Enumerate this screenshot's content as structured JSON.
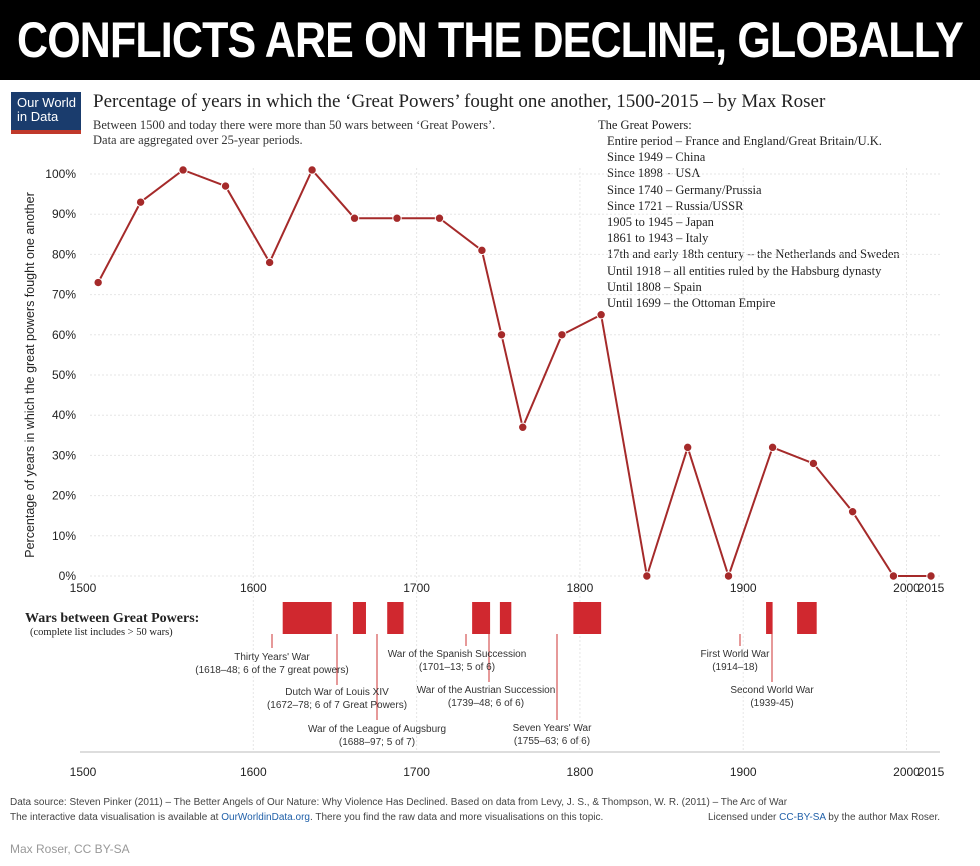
{
  "banner": "CONFLICTS ARE ON THE DECLINE, GLOBALLY",
  "logo": {
    "line1": "Our World",
    "line2": "in Data",
    "color": "#1a3c6d",
    "accent": "#c0392b"
  },
  "title": "Percentage of years in which the ‘Great Powers’ fought one another, 1500-2015 – by Max Roser",
  "subtitle_lines": [
    "Between 1500 and today there were more than 50 wars between ‘Great Powers’.",
    "Data are aggregated over 25-year periods."
  ],
  "great_powers": {
    "heading": "The Great Powers:",
    "items": [
      "Entire period – France and England/Great Britain/U.K.",
      "Since 1949 – China",
      "Since 1898 – USA",
      "Since 1740 – Germany/Prussia",
      "Since 1721 – Russia/USSR",
      "1905 to 1945 – Japan",
      "1861 to 1943 – Italy",
      "17th and early 18th century – the Netherlands and Sweden",
      "Until 1918 – all entities ruled by the Habsburg dynasty",
      "Until 1808 – Spain",
      "Until 1699 – the Ottoman Empire"
    ]
  },
  "chart_data": {
    "type": "line",
    "ylabel": "Percentage of years in which the great powers fought one another",
    "xlim": [
      1500,
      2015
    ],
    "ylim": [
      0,
      100
    ],
    "x_ticks": [
      "1500",
      "1600",
      "1700",
      "1800",
      "1900",
      "2000",
      "2015"
    ],
    "x_tick_values": [
      1500,
      1600,
      1700,
      1800,
      1900,
      2000,
      2015
    ],
    "y_ticks": [
      "0%",
      "10%",
      "20%",
      "30%",
      "40%",
      "50%",
      "60%",
      "70%",
      "80%",
      "90%",
      "100%"
    ],
    "y_tick_values": [
      0,
      10,
      20,
      30,
      40,
      50,
      60,
      70,
      80,
      90,
      100
    ],
    "grid": true,
    "series": [
      {
        "color": "#a52a2a",
        "points": [
          [
            1505,
            73
          ],
          [
            1531,
            93
          ],
          [
            1557,
            101
          ],
          [
            1583,
            97
          ],
          [
            1610,
            78
          ],
          [
            1636,
            101
          ],
          [
            1662,
            89
          ],
          [
            1688,
            89
          ],
          [
            1714,
            89
          ],
          [
            1740,
            81
          ],
          [
            1752,
            60
          ],
          [
            1765,
            37
          ],
          [
            1789,
            60
          ],
          [
            1813,
            65
          ],
          [
            1841,
            0
          ],
          [
            1866,
            32
          ],
          [
            1891,
            0
          ],
          [
            1918,
            32
          ],
          [
            1943,
            28
          ],
          [
            1967,
            16
          ],
          [
            1992,
            0
          ],
          [
            2015,
            0
          ]
        ]
      }
    ],
    "wars": {
      "title": "Wars between Great Powers:",
      "subtitle": "(complete list includes > 50 wars)",
      "color": "#d0282f",
      "bars": [
        {
          "start": 1618,
          "end": 1648
        },
        {
          "start": 1661,
          "end": 1669
        },
        {
          "start": 1682,
          "end": 1692
        },
        {
          "start": 1734,
          "end": 1745
        },
        {
          "start": 1751,
          "end": 1758
        },
        {
          "start": 1796,
          "end": 1813
        },
        {
          "start": 1914,
          "end": 1918
        },
        {
          "start": 1933,
          "end": 1945
        }
      ],
      "labels": [
        {
          "lines": [
            "Thirty Years' War",
            "(1618–48; 6 of the 7 great powers)"
          ]
        },
        {
          "lines": [
            "Dutch War of Louis XIV",
            "(1672–78; 6 of 7 Great Powers)"
          ]
        },
        {
          "lines": [
            "War of the League of Augsburg",
            "(1688–97; 5 of 7)"
          ]
        },
        {
          "lines": [
            "War of the Spanish Succession",
            "(1701–13; 5 of 6)"
          ]
        },
        {
          "lines": [
            "War of the Austrian Succession",
            "(1739–48; 6 of 6)"
          ]
        },
        {
          "lines": [
            "Seven Years' War",
            "(1755–63; 6 of 6)"
          ]
        },
        {
          "lines": [
            "First World War",
            "(1914–18)"
          ]
        },
        {
          "lines": [
            "Second World War",
            "(1939-45)"
          ]
        }
      ]
    }
  },
  "footer": {
    "source": "Data source: Steven Pinker (2011) – The Better Angels of Our Nature: Why Violence Has Declined. Based on data from Levy, J. S., & Thompson, W. R. (2011) – The Arc of War",
    "interactive_pre": "The interactive data visualisation is available at ",
    "interactive_link": "OurWorldinData.org",
    "interactive_post": ". There you find the raw data and more visualisations on this topic.",
    "license_pre": "Licensed under ",
    "license_link": "CC-BY-SA",
    "license_post": " by the author Max Roser.",
    "link_color": "#1f5fa8"
  },
  "credit": "Max Roser, CC BY-SA"
}
